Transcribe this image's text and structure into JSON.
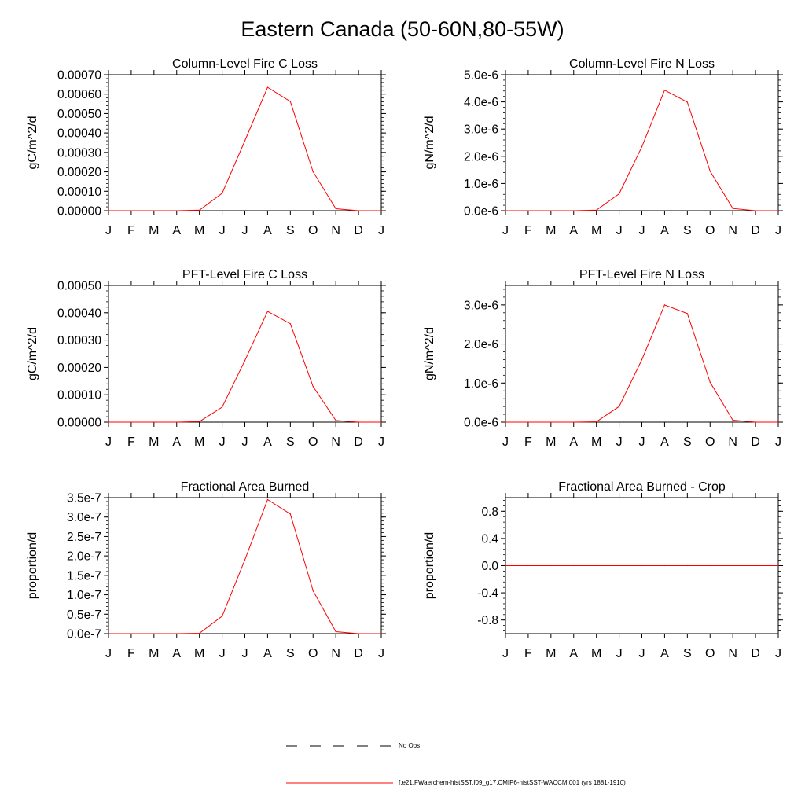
{
  "title": "Eastern Canada (50-60N,80-55W)",
  "legend": {
    "items": [
      {
        "label": "No Obs",
        "style": "dashed",
        "color": "#000000"
      },
      {
        "label": "f.e21.FWaerchem-histSST.f09_g17.CMIP6-histSST-WACCM.001 (yrs 1881-1910)",
        "style": "solid",
        "color": "#ff0000"
      }
    ]
  },
  "chart_data": [
    {
      "type": "line",
      "title": "Column-Level Fire C Loss",
      "ylabel": "gC/m^2/d",
      "xlabel": "",
      "categories": [
        "J",
        "F",
        "M",
        "A",
        "M",
        "J",
        "J",
        "A",
        "S",
        "O",
        "N",
        "D",
        "J"
      ],
      "ylim": [
        0,
        0.0007
      ],
      "yticks": [
        0,
        0.0001,
        0.0002,
        0.0003,
        0.0004,
        0.0005,
        0.0006,
        0.0007
      ],
      "ytick_labels": [
        "0.00000",
        "0.00010",
        "0.00020",
        "0.00030",
        "0.00040",
        "0.00050",
        "0.00060",
        "0.00070"
      ],
      "series": [
        {
          "color": "#ff0000",
          "values": [
            0,
            0,
            0,
            0,
            3e-06,
            9e-05,
            0.00036,
            0.000635,
            0.000562,
            0.0002,
            1e-05,
            0,
            0
          ]
        }
      ]
    },
    {
      "type": "line",
      "title": "Column-Level Fire N Loss",
      "ylabel": "gN/m^2/d",
      "xlabel": "",
      "categories": [
        "J",
        "F",
        "M",
        "A",
        "M",
        "J",
        "J",
        "A",
        "S",
        "O",
        "N",
        "D",
        "J"
      ],
      "ylim": [
        0,
        5e-06
      ],
      "yticks": [
        0,
        1e-06,
        2e-06,
        3e-06,
        4e-06,
        5e-06
      ],
      "ytick_labels": [
        "0.0e-6",
        "1.0e-6",
        "2.0e-6",
        "3.0e-6",
        "4.0e-6",
        "5.0e-6"
      ],
      "series": [
        {
          "color": "#ff0000",
          "values": [
            0,
            0,
            0,
            0,
            2e-08,
            6.2e-07,
            2.35e-06,
            4.43e-06,
            3.99e-06,
            1.45e-06,
            8e-08,
            0,
            0
          ]
        }
      ]
    },
    {
      "type": "line",
      "title": "PFT-Level Fire C Loss",
      "ylabel": "gC/m^2/d",
      "xlabel": "",
      "categories": [
        "J",
        "F",
        "M",
        "A",
        "M",
        "J",
        "J",
        "A",
        "S",
        "O",
        "N",
        "D",
        "J"
      ],
      "ylim": [
        0,
        0.0005
      ],
      "yticks": [
        0,
        0.0001,
        0.0002,
        0.0003,
        0.0004,
        0.0005
      ],
      "ytick_labels": [
        "0.00000",
        "0.00010",
        "0.00020",
        "0.00030",
        "0.00040",
        "0.00050"
      ],
      "series": [
        {
          "color": "#ff0000",
          "values": [
            0,
            0,
            0,
            0,
            2e-06,
            5.5e-05,
            0.000225,
            0.000405,
            0.00036,
            0.00013,
            6e-06,
            0,
            0
          ]
        }
      ]
    },
    {
      "type": "line",
      "title": "PFT-Level Fire N Loss",
      "ylabel": "gN/m^2/d",
      "xlabel": "",
      "categories": [
        "J",
        "F",
        "M",
        "A",
        "M",
        "J",
        "J",
        "A",
        "S",
        "O",
        "N",
        "D",
        "J"
      ],
      "ylim": [
        0,
        3.5e-06
      ],
      "yticks": [
        0,
        1e-06,
        2e-06,
        3e-06
      ],
      "ytick_labels": [
        "0.0e-6",
        "1.0e-6",
        "2.0e-6",
        "3.0e-6"
      ],
      "series": [
        {
          "color": "#ff0000",
          "values": [
            0,
            0,
            0,
            0,
            1e-08,
            4e-07,
            1.6e-06,
            3e-06,
            2.78e-06,
            1.02e-06,
            5e-08,
            0,
            0
          ]
        }
      ]
    },
    {
      "type": "line",
      "title": "Fractional Area Burned",
      "ylabel": "proportion/d",
      "xlabel": "",
      "categories": [
        "J",
        "F",
        "M",
        "A",
        "M",
        "J",
        "J",
        "A",
        "S",
        "O",
        "N",
        "D",
        "J"
      ],
      "ylim": [
        0,
        3.5e-07
      ],
      "yticks": [
        0,
        5e-08,
        1e-07,
        1.5e-07,
        2e-07,
        2.5e-07,
        3e-07,
        3.5e-07
      ],
      "ytick_labels": [
        "0.0e-7",
        "0.5e-7",
        "1.0e-7",
        "1.5e-7",
        "2.0e-7",
        "2.5e-7",
        "3.0e-7",
        "3.5e-7"
      ],
      "series": [
        {
          "color": "#ff0000",
          "values": [
            0,
            0,
            0,
            0,
            1e-09,
            4.5e-08,
            1.9e-07,
            3.45e-07,
            3.08e-07,
            1.1e-07,
            5e-09,
            0,
            0
          ]
        }
      ]
    },
    {
      "type": "line",
      "title": "Fractional Area Burned - Crop",
      "ylabel": "proportion/d",
      "xlabel": "",
      "categories": [
        "J",
        "F",
        "M",
        "A",
        "M",
        "J",
        "J",
        "A",
        "S",
        "O",
        "N",
        "D",
        "J"
      ],
      "ylim": [
        -1,
        1
      ],
      "yticks": [
        -0.8,
        -0.4,
        0.0,
        0.4,
        0.8
      ],
      "ytick_labels": [
        "-0.8",
        "-0.4",
        "0.0",
        "0.4",
        "0.8"
      ],
      "series": [
        {
          "color": "#ff0000",
          "values": [
            0,
            0,
            0,
            0,
            0,
            0,
            0,
            0,
            0,
            0,
            0,
            0,
            0
          ]
        }
      ]
    }
  ]
}
